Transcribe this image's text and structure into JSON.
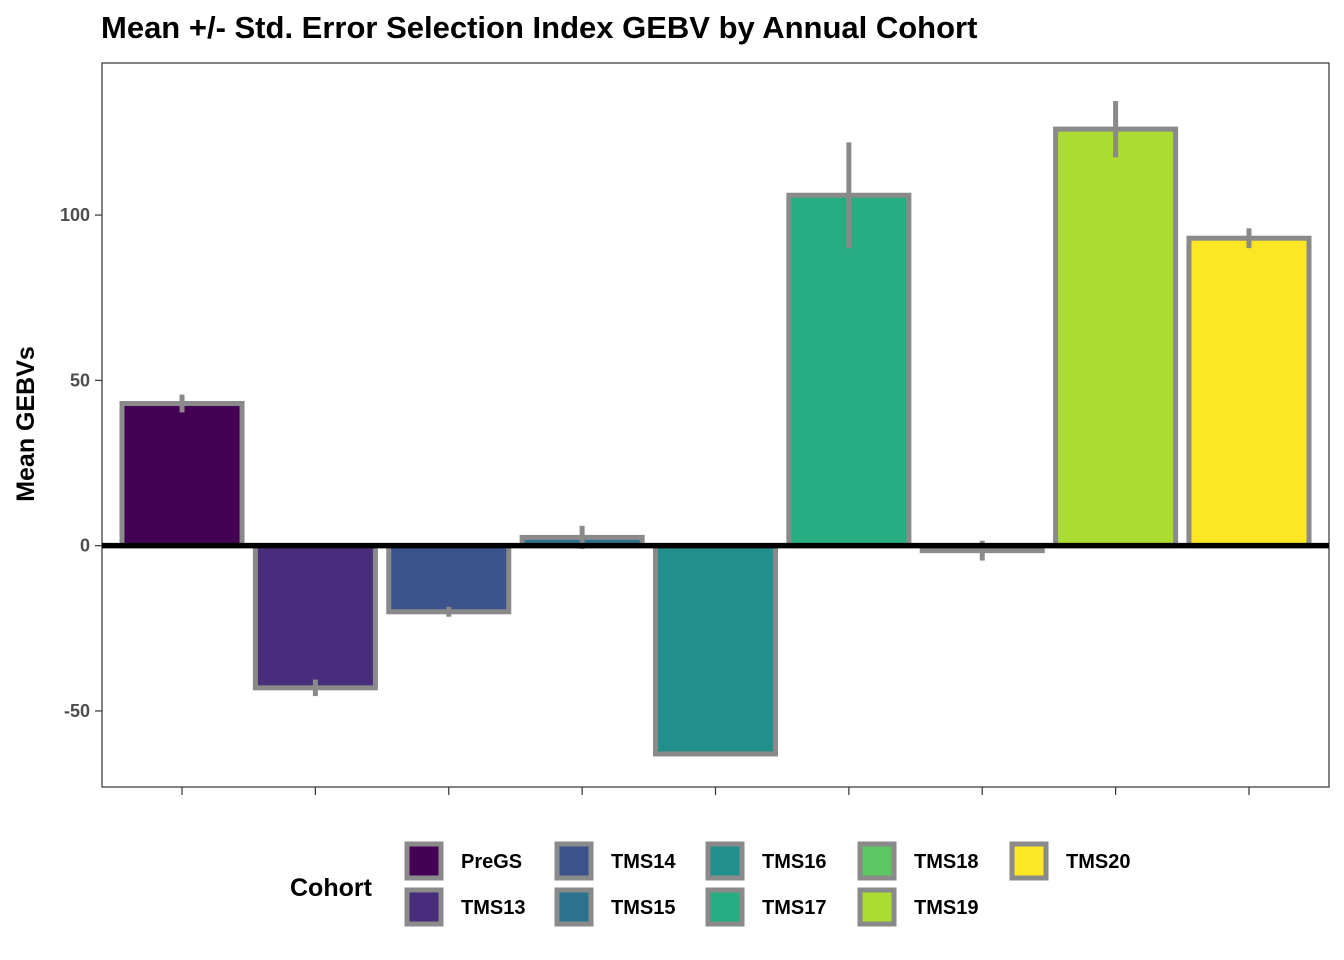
{
  "chart_data": {
    "type": "bar",
    "title": "Mean +/- Std. Error Selection Index GEBV by Annual Cohort",
    "xlabel": "",
    "ylabel": "Mean GEBVs",
    "ylim": [
      -73,
      146
    ],
    "yticks": [
      -50,
      0,
      50,
      100
    ],
    "grid": false,
    "legend": {
      "title": "Cohort",
      "position": "bottom"
    },
    "bar_outline_color": "#8a8a8a",
    "errorbar_color": "#8a8a8a",
    "zero_line_color": "#000000",
    "categories": [
      "PreGS",
      "TMS13",
      "TMS14",
      "TMS15",
      "TMS16",
      "TMS17",
      "TMS18",
      "TMS19",
      "TMS20"
    ],
    "colors": [
      "#440154",
      "#472D7B",
      "#3B528B",
      "#2C728E",
      "#21908C",
      "#27AD81",
      "#5DC863",
      "#AADC32",
      "#FDE725"
    ],
    "bars": [
      {
        "cohort": "PreGS",
        "x_slot": 1,
        "value": 43,
        "se": 2.7
      },
      {
        "cohort": "TMS13",
        "x_slot": 2,
        "value": -43,
        "se": 2.5
      },
      {
        "cohort": "TMS14",
        "x_slot": 3,
        "value": -20,
        "se": 1.5
      },
      {
        "cohort": "TMS15",
        "x_slot": 4,
        "value": 2.5,
        "se": 3.5
      },
      {
        "cohort": "TMS16",
        "x_slot": 5,
        "value": -63,
        "se": 0
      },
      {
        "cohort": "TMS17",
        "x_slot": 6,
        "value": 106,
        "se": 16
      },
      {
        "cohort": "TMS18",
        "x_slot": 7,
        "value": -1.5,
        "se": 3
      },
      {
        "cohort": "TMS19",
        "x_slot": 8,
        "value": 126,
        "se": 8.5
      },
      {
        "cohort": "TMS20",
        "x_slot": 9,
        "value": 93,
        "se": 3
      }
    ]
  }
}
